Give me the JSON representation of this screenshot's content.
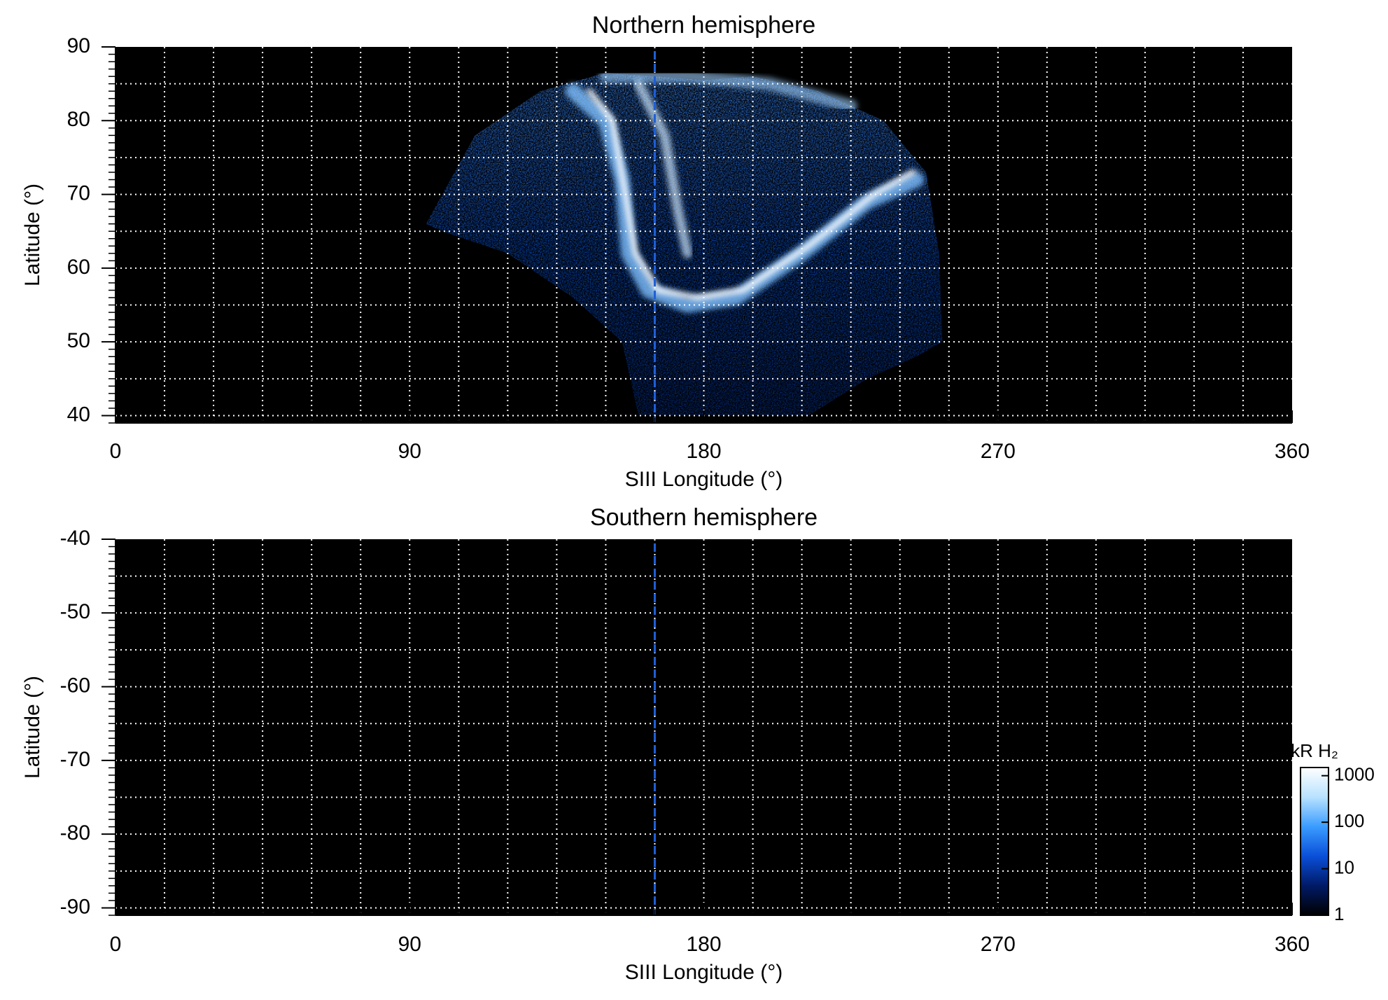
{
  "chart_data": [
    {
      "type": "heatmap",
      "title": "Northern hemisphere",
      "xlabel": "SIII Longitude (°)",
      "ylabel": "Latitude (°)",
      "xlim": [
        0,
        360
      ],
      "xticks": [
        0,
        90,
        180,
        270,
        360
      ],
      "ylim": [
        39,
        90
      ],
      "yticks": [
        40,
        50,
        60,
        70,
        80,
        90
      ],
      "grid_x_step": 15,
      "grid_y_step": 5,
      "minor_y_step": 1,
      "reference_x": 165,
      "reference_color": "#1f5fd6"
    },
    {
      "type": "heatmap",
      "title": "Southern hemisphere",
      "xlabel": "SIII Longitude (°)",
      "ylabel": "Latitude (°)",
      "xlim": [
        0,
        360
      ],
      "xticks": [
        0,
        90,
        180,
        270,
        360
      ],
      "ylim": [
        -91,
        -40
      ],
      "yticks": [
        -90,
        -80,
        -70,
        -60,
        -50,
        -40
      ],
      "grid_x_step": 15,
      "grid_y_step": 5,
      "minor_y_step": 1,
      "reference_x": 165,
      "reference_color": "#1f5fd6",
      "colorbar": {
        "label": "kR H₂",
        "lim": [
          1,
          1500
        ],
        "ticks": [
          1,
          10,
          100,
          1000
        ],
        "log": true,
        "colors": [
          "#000000",
          "#001a66",
          "#0a4fd8",
          "#3a9cff",
          "#b8e2ff",
          "#ffffff"
        ]
      }
    }
  ]
}
